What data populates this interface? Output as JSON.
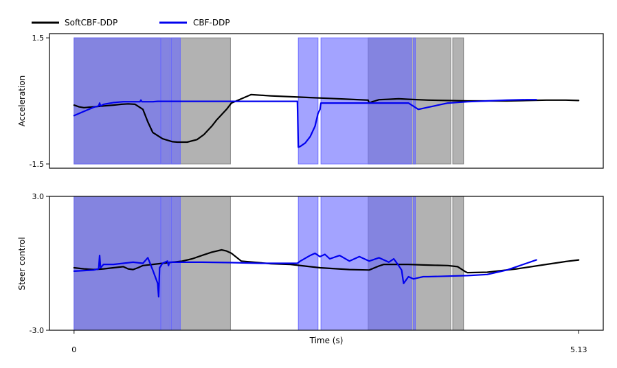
{
  "chart_data": {
    "type": "line",
    "legend": {
      "placement": "top-left",
      "entries": [
        {
          "label": "SoftCBF-DDP",
          "color": "#000000"
        },
        {
          "label": "CBF-DDP",
          "color": "#0000ee"
        }
      ]
    },
    "xlabel": "Time (s)",
    "xlim": [
      -0.25,
      5.38
    ],
    "xticks": [
      0,
      5.13
    ],
    "xtick_labels": [
      "0",
      "5.13"
    ],
    "shade_colors": {
      "SoftCBF-DDP": "#7f7f7f",
      "CBF-DDP": "#6666ff"
    },
    "shaded_intervals": {
      "SoftCBF-DDP": [
        [
          0.0,
          1.59
        ],
        [
          2.99,
          3.83
        ],
        [
          3.85,
          3.96
        ]
      ],
      "CBF-DDP": [
        [
          0.0,
          0.88
        ],
        [
          0.89,
          0.98
        ],
        [
          0.99,
          1.08
        ],
        [
          2.28,
          2.48
        ],
        [
          2.51,
          3.43
        ],
        [
          3.45,
          3.47
        ]
      ]
    },
    "panels": [
      {
        "ylabel": "Acceleration",
        "ylim": [
          -1.6,
          1.6
        ],
        "yticks": [
          -1.5,
          1.5
        ],
        "ytick_labels": [
          "-1.5",
          "1.5"
        ],
        "series": [
          {
            "name": "SoftCBF-DDP",
            "color": "#000000",
            "x": [
              0,
              0.05,
              0.1,
              0.2,
              0.3,
              0.4,
              0.48,
              0.55,
              0.62,
              0.7,
              0.75,
              0.8,
              0.9,
              1.0,
              1.05,
              1.15,
              1.25,
              1.32,
              1.4,
              1.45,
              1.55,
              1.6,
              1.8,
              2.0,
              2.2,
              2.4,
              2.6,
              2.8,
              2.99,
              3.0,
              3.03,
              3.06,
              3.1,
              3.2,
              3.3,
              3.4,
              3.6,
              3.8,
              4.0,
              4.2,
              4.4,
              4.6,
              4.8,
              5.0,
              5.13
            ],
            "y": [
              -0.1,
              -0.14,
              -0.16,
              -0.14,
              -0.12,
              -0.1,
              -0.08,
              -0.07,
              -0.08,
              -0.2,
              -0.5,
              -0.75,
              -0.9,
              -0.97,
              -0.98,
              -0.98,
              -0.92,
              -0.8,
              -0.6,
              -0.45,
              -0.2,
              -0.05,
              0.15,
              0.12,
              0.1,
              0.08,
              0.06,
              0.04,
              0.02,
              -0.05,
              -0.02,
              0.0,
              0.03,
              0.04,
              0.05,
              0.04,
              0.02,
              0.01,
              0.0,
              0.0,
              0.0,
              0.01,
              0.02,
              0.02,
              0.01
            ]
          },
          {
            "name": "CBF-DDP",
            "color": "#0000ee",
            "x": [
              0,
              0.1,
              0.2,
              0.25,
              0.26,
              0.27,
              0.3,
              0.4,
              0.5,
              0.6,
              0.67,
              0.68,
              0.69,
              0.8,
              0.85,
              0.9,
              0.95,
              1.0,
              1.1,
              1.3,
              1.6,
              1.9,
              2.2,
              2.27,
              2.28,
              2.3,
              2.35,
              2.4,
              2.45,
              2.48,
              2.5,
              2.51,
              2.6,
              2.8,
              3.0,
              3.2,
              3.4,
              3.5,
              3.6,
              3.8,
              4.0,
              4.2,
              4.4,
              4.6,
              4.7
            ],
            "y": [
              -0.35,
              -0.25,
              -0.15,
              -0.12,
              -0.05,
              -0.12,
              -0.08,
              -0.04,
              -0.02,
              -0.02,
              -0.02,
              0.02,
              -0.02,
              -0.02,
              -0.01,
              -0.01,
              -0.01,
              -0.01,
              -0.01,
              -0.01,
              -0.01,
              -0.01,
              -0.01,
              -0.01,
              -1.1,
              -1.08,
              -1.0,
              -0.85,
              -0.6,
              -0.3,
              -0.2,
              -0.05,
              -0.05,
              -0.05,
              -0.05,
              -0.05,
              -0.05,
              -0.2,
              -0.15,
              -0.05,
              -0.02,
              0.0,
              0.02,
              0.03,
              0.03
            ]
          }
        ]
      },
      {
        "ylabel": "Steer control",
        "ylim": [
          -3.0,
          3.0
        ],
        "yticks": [
          -3.0,
          3.0
        ],
        "ytick_labels": [
          "-3.0",
          "3.0"
        ],
        "series": [
          {
            "name": "SoftCBF-DDP",
            "color": "#000000",
            "x": [
              0,
              0.1,
              0.2,
              0.3,
              0.4,
              0.5,
              0.55,
              0.6,
              0.65,
              0.7,
              0.8,
              0.9,
              1.0,
              1.1,
              1.2,
              1.3,
              1.4,
              1.5,
              1.55,
              1.6,
              1.7,
              2.0,
              2.2,
              2.5,
              2.8,
              3.0,
              3.1,
              3.15,
              3.4,
              3.6,
              3.8,
              3.9,
              3.98,
              4.0,
              4.2,
              4.5,
              4.8,
              5.0,
              5.13
            ],
            "y": [
              -0.2,
              -0.25,
              -0.28,
              -0.25,
              -0.2,
              -0.15,
              -0.25,
              -0.28,
              -0.2,
              -0.1,
              -0.05,
              0.0,
              0.05,
              0.1,
              0.2,
              0.35,
              0.5,
              0.6,
              0.55,
              0.45,
              0.1,
              -0.02,
              -0.05,
              -0.2,
              -0.28,
              -0.3,
              -0.12,
              -0.05,
              -0.05,
              -0.08,
              -0.1,
              -0.15,
              -0.38,
              -0.42,
              -0.4,
              -0.25,
              -0.05,
              0.08,
              0.15
            ]
          },
          {
            "name": "CBF-DDP",
            "color": "#0000ee",
            "x": [
              0,
              0.1,
              0.2,
              0.25,
              0.26,
              0.27,
              0.3,
              0.4,
              0.5,
              0.6,
              0.7,
              0.75,
              0.8,
              0.85,
              0.86,
              0.87,
              0.9,
              0.95,
              0.96,
              0.97,
              1.0,
              1.1,
              1.3,
              1.6,
              1.9,
              2.1,
              2.27,
              2.3,
              2.4,
              2.45,
              2.5,
              2.55,
              2.6,
              2.7,
              2.8,
              2.9,
              3.0,
              3.1,
              3.2,
              3.25,
              3.3,
              3.33,
              3.35,
              3.4,
              3.45,
              3.5,
              3.55,
              3.6,
              4.0,
              4.2,
              4.3,
              4.4,
              4.5,
              4.6,
              4.7
            ],
            "y": [
              -0.35,
              -0.33,
              -0.3,
              -0.25,
              0.35,
              -0.2,
              -0.05,
              -0.05,
              0.0,
              0.05,
              0.0,
              0.25,
              -0.3,
              -0.9,
              -1.5,
              -0.2,
              0.0,
              0.1,
              -0.1,
              0.05,
              0.05,
              0.05,
              0.05,
              0.03,
              0.0,
              0.0,
              0.0,
              0.1,
              0.35,
              0.45,
              0.3,
              0.4,
              0.2,
              0.35,
              0.1,
              0.3,
              0.1,
              0.25,
              0.05,
              0.2,
              -0.1,
              -0.3,
              -0.9,
              -0.6,
              -0.7,
              -0.65,
              -0.6,
              -0.6,
              -0.55,
              -0.5,
              -0.4,
              -0.3,
              -0.15,
              0.0,
              0.15
            ]
          }
        ]
      }
    ]
  }
}
